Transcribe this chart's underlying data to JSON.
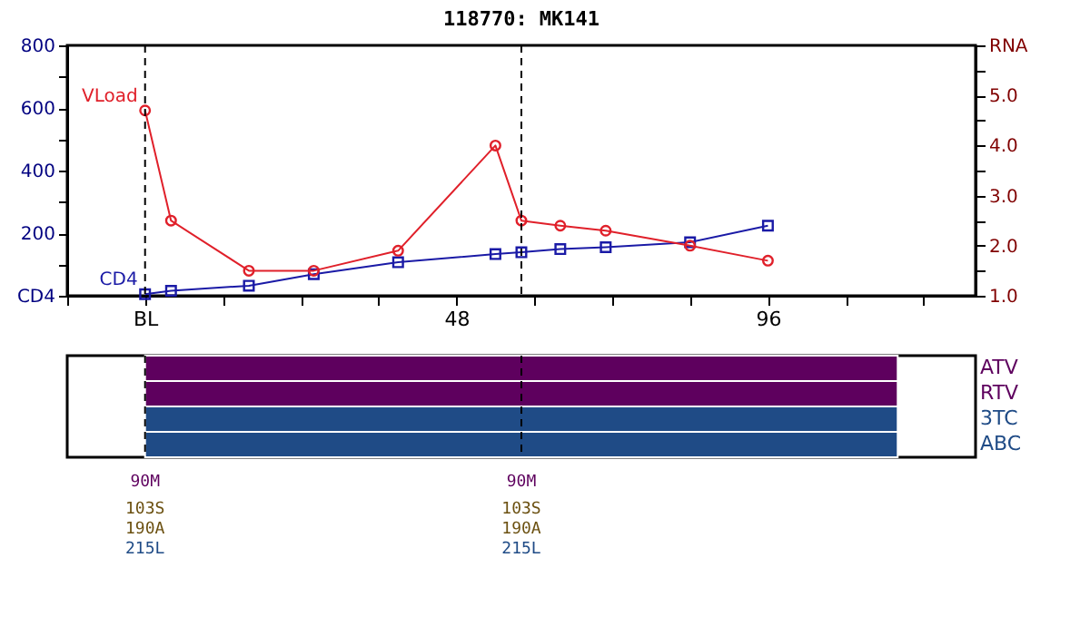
{
  "chart_data": [
    {
      "type": "line",
      "title": "118770: MK141",
      "x": [
        0,
        4,
        16,
        26,
        39,
        54,
        58,
        64,
        71,
        84,
        96
      ],
      "series": [
        {
          "name": "CD4",
          "color": "#1a1aa6",
          "marker": "square",
          "values": [
            5,
            16,
            32,
            69,
            107,
            133,
            139,
            149,
            155,
            171,
            224
          ]
        },
        {
          "name": "VLoad",
          "color": "#e0202a",
          "marker": "circle",
          "axis": "y2",
          "values": [
            4.7,
            2.5,
            1.5,
            1.5,
            1.9,
            4.0,
            2.5,
            2.4,
            2.3,
            2.0,
            1.7
          ]
        }
      ],
      "xlim": [
        -12,
        128
      ],
      "xticks": [
        {
          "value": -12,
          "label": null
        },
        {
          "value": 0,
          "label": "BL"
        },
        {
          "value": 12,
          "label": null
        },
        {
          "value": 24,
          "label": null
        },
        {
          "value": 36,
          "label": null
        },
        48,
        {
          "value": 60,
          "label": null
        },
        {
          "value": 72,
          "label": null
        },
        {
          "value": 84,
          "label": null
        },
        96,
        {
          "value": 108,
          "label": null
        },
        {
          "value": 120,
          "label": null
        }
      ],
      "ylim": [
        0,
        800
      ],
      "yticks": [
        {
          "value": 0,
          "label": "CD4"
        },
        {
          "value": 100,
          "label": null
        },
        200,
        {
          "value": 300,
          "label": null
        },
        400,
        {
          "value": 500,
          "label": null
        },
        600,
        {
          "value": 700,
          "label": null
        },
        800
      ],
      "y2lim": [
        1,
        6
      ],
      "y2ticks": [
        {
          "value": 1,
          "label": "1.0"
        },
        {
          "value": 1.5,
          "label": null
        },
        {
          "value": 2,
          "label": "2.0"
        },
        {
          "value": 2.5,
          "label": null
        },
        {
          "value": 3,
          "label": "3.0"
        },
        {
          "value": 3.5,
          "label": null
        },
        {
          "value": 4,
          "label": "4.0"
        },
        {
          "value": 4.5,
          "label": null
        },
        {
          "value": 5,
          "label": "5.0"
        },
        {
          "value": 5.5,
          "label": null
        },
        {
          "value": 6,
          "label": "RNA"
        }
      ],
      "ref_lines": [
        {
          "axis": "x",
          "value": 0,
          "color": "#000000",
          "line_style": "dashed"
        },
        {
          "axis": "x",
          "value": 58,
          "color": "#000000",
          "line_style": "dashed"
        }
      ]
    },
    {
      "type": "bar",
      "orientation": "horizontal",
      "categories": [
        "ATV",
        "RTV",
        "3TC",
        "ABC"
      ],
      "base": [
        0,
        0,
        0,
        0
      ],
      "values": [
        116,
        116,
        116,
        116
      ],
      "colors": [
        "#5e005e",
        "#5e005e",
        "#1f4b86",
        "#1f4b86"
      ],
      "xlim": [
        -12,
        128
      ],
      "tick_labels": "y",
      "ref_lines": [
        {
          "axis": "x",
          "value": 0,
          "color": "#000000",
          "line_style": "dashed"
        },
        {
          "axis": "x",
          "value": 58,
          "color": "#000000",
          "line_style": "dashed"
        }
      ],
      "annotations": [
        "90M",
        "103S",
        "190A",
        "215L",
        "90M",
        "103S",
        "190A",
        "215L"
      ]
    }
  ]
}
